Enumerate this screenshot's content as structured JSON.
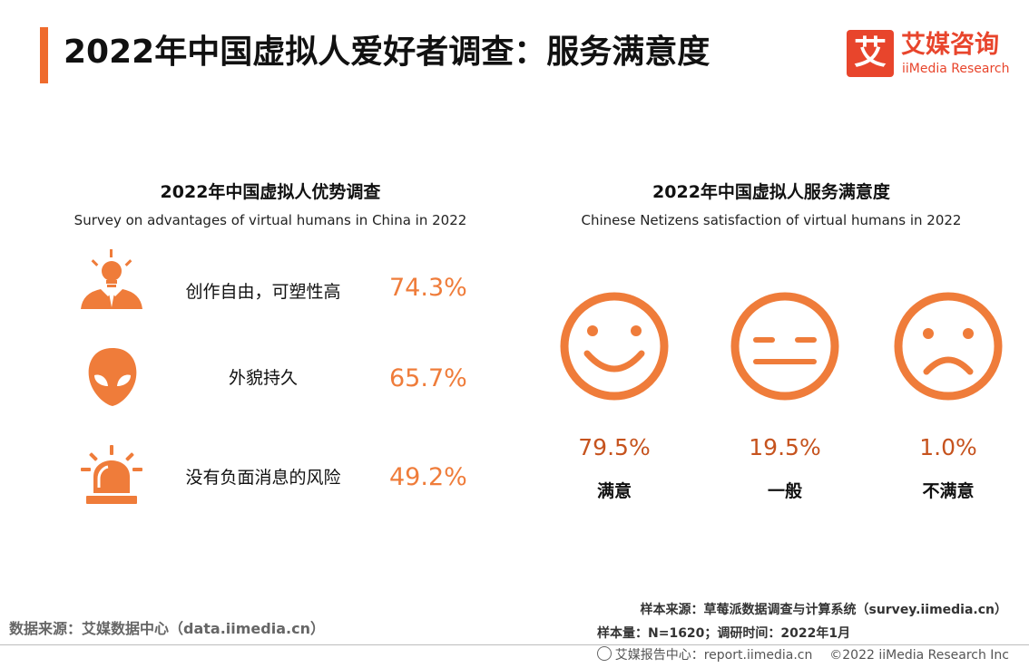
{
  "page": {
    "title": "2022年中国虚拟人爱好者调查：服务满意度"
  },
  "logo": {
    "mark": "艾",
    "name_cn": "艾媒咨询",
    "name_en": "iiMedia Research"
  },
  "left_panel": {
    "title": "2022年中国虚拟人优势调查",
    "subtitle": "Survey on advantages of virtual humans in China in 2022",
    "items": [
      {
        "icon": "lightbulb-person-icon",
        "label": "创作自由，可塑性高",
        "value": "74.3%"
      },
      {
        "icon": "alien-head-icon",
        "label": "外貌持久",
        "value": "65.7%"
      },
      {
        "icon": "alarm-light-icon",
        "label": "没有负面消息的风险",
        "value": "49.2%"
      }
    ]
  },
  "right_panel": {
    "title": "2022年中国虚拟人服务满意度",
    "subtitle": "Chinese Netizens satisfaction of virtual humans in 2022",
    "items": [
      {
        "icon": "smiling-face-icon",
        "value": "79.5%",
        "label": "满意"
      },
      {
        "icon": "neutral-face-icon",
        "value": "19.5%",
        "label": "一般"
      },
      {
        "icon": "frowning-face-icon",
        "value": "1.0%",
        "label": "不满意"
      }
    ]
  },
  "footer": {
    "data_source": "数据来源：艾媒数据中心（data.iimedia.cn）",
    "sample_source": "样本来源：草莓派数据调查与计算系统（survey.iimedia.cn）",
    "sample_size": "样本量：N=1620；调研时间：2022年1月",
    "report_center": "艾媒报告中心：report.iimedia.cn",
    "copyright": "©2022 iiMedia Research Inc"
  },
  "colors": {
    "accent": "#ef6b2d",
    "icon": "#ef7c3a",
    "brand": "#e8452c",
    "value_dark": "#c6531e"
  }
}
